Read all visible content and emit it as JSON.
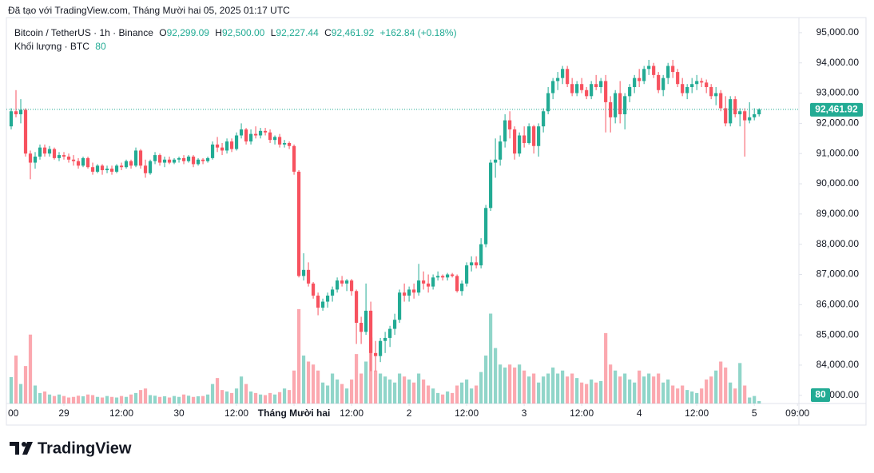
{
  "chart_data": {
    "type": "candlestick",
    "title": "Đã tạo với TradingView.com, Tháng Mười hai 05, 2025 01:17 UTC",
    "legend": {
      "symbol": "Bitcoin / TetherUS · 1h · Binance",
      "open_label": "O",
      "open": "92,299.09",
      "high_label": "H",
      "high": "92,500.00",
      "low_label": "L",
      "low": "92,227.44",
      "close_label": "C",
      "close": "92,461.92",
      "change": "+162.84 (+0.18%)",
      "volume_label": "Khối lượng · BTC"
    },
    "logo": "TradingView",
    "up_color": "#22ab94",
    "down_color": "#f7525f",
    "grid": false,
    "xlim": [
      0,
      165.3
    ],
    "ylim": [
      82730,
      95500
    ],
    "volume_lim": [
      0,
      4000
    ],
    "xticks": [
      {
        "value": 0,
        "label": "00"
      },
      {
        "value": 12,
        "label": "29"
      },
      {
        "value": 24,
        "label": "12:00"
      },
      {
        "value": 36,
        "label": "30"
      },
      {
        "value": 48,
        "label": "12:00"
      },
      {
        "value": 60,
        "label": "Tháng Mười hai"
      },
      {
        "value": 72,
        "label": "12:00"
      },
      {
        "value": 84,
        "label": "2"
      },
      {
        "value": 96,
        "label": "12:00"
      },
      {
        "value": 108,
        "label": "3"
      },
      {
        "value": 120,
        "label": "12:00"
      },
      {
        "value": 132,
        "label": "4"
      },
      {
        "value": 144,
        "label": "12:00"
      },
      {
        "value": 156,
        "label": "5"
      },
      {
        "value": 165,
        "label": "09:00"
      }
    ],
    "yticks": [
      {
        "value": 83000,
        "label": "83,000.00"
      },
      {
        "value": 84000,
        "label": "84,000.00"
      },
      {
        "value": 85000,
        "label": "85,000.00"
      },
      {
        "value": 86000,
        "label": "86,000.00"
      },
      {
        "value": 87000,
        "label": "87,000.00"
      },
      {
        "value": 88000,
        "label": "88,000.00"
      },
      {
        "value": 89000,
        "label": "89,000.00"
      },
      {
        "value": 90000,
        "label": "90,000.00"
      },
      {
        "value": 91000,
        "label": "91,000.00"
      },
      {
        "value": 92000,
        "label": "92,000.00"
      },
      {
        "value": 93000,
        "label": "93,000.00"
      },
      {
        "value": 94000,
        "label": "94,000.00"
      },
      {
        "value": 95000,
        "label": "95,000.00"
      }
    ],
    "x": [
      1,
      2,
      3,
      4,
      5,
      6,
      7,
      8,
      9,
      10,
      11,
      12,
      13,
      14,
      15,
      16,
      17,
      18,
      19,
      20,
      21,
      22,
      23,
      24,
      25,
      26,
      27,
      28,
      29,
      30,
      31,
      32,
      33,
      34,
      35,
      36,
      37,
      38,
      39,
      40,
      41,
      42,
      43,
      44,
      45,
      46,
      47,
      48,
      49,
      50,
      51,
      52,
      53,
      54,
      55,
      56,
      57,
      58,
      59,
      60,
      61,
      62,
      63,
      64,
      65,
      66,
      67,
      68,
      69,
      70,
      71,
      72,
      73,
      74,
      75,
      76,
      77,
      78,
      79,
      80,
      81,
      82,
      83,
      84,
      85,
      86,
      87,
      88,
      89,
      90,
      91,
      92,
      93,
      94,
      95,
      96,
      97,
      98,
      99,
      100,
      101,
      102,
      103,
      104,
      105,
      106,
      107,
      108,
      109,
      110,
      111,
      112,
      113,
      114,
      115,
      116,
      117,
      118,
      119,
      120,
      121,
      122,
      123,
      124,
      125,
      126,
      127,
      128,
      129,
      130,
      131,
      132,
      133,
      134,
      135,
      136,
      137,
      138,
      139,
      140,
      141,
      142,
      143,
      144,
      145,
      146,
      147,
      148,
      149,
      150,
      151,
      152,
      153,
      154,
      155,
      156,
      157
    ],
    "ohlc": [
      [
        91900,
        92500,
        91800,
        92400
      ],
      [
        92400,
        93100,
        92200,
        92300
      ],
      [
        92300,
        92800,
        92000,
        92450
      ],
      [
        92450,
        92500,
        90900,
        91000
      ],
      [
        91000,
        91100,
        90150,
        90700
      ],
      [
        90700,
        91050,
        90500,
        90900
      ],
      [
        90900,
        91300,
        90800,
        91200
      ],
      [
        91200,
        91300,
        90900,
        91000
      ],
      [
        91000,
        91250,
        90900,
        91150
      ],
      [
        91150,
        91200,
        90800,
        90850
      ],
      [
        90850,
        91050,
        90750,
        90950
      ],
      [
        90950,
        91050,
        90800,
        90900
      ],
      [
        90900,
        91000,
        90700,
        90800
      ],
      [
        90800,
        90950,
        90600,
        90750
      ],
      [
        90750,
        90850,
        90500,
        90600
      ],
      [
        90600,
        90900,
        90550,
        90850
      ],
      [
        90850,
        90900,
        90500,
        90550
      ],
      [
        90550,
        90700,
        90300,
        90400
      ],
      [
        90400,
        90650,
        90350,
        90600
      ],
      [
        90600,
        90650,
        90300,
        90450
      ],
      [
        90450,
        90600,
        90350,
        90500
      ],
      [
        90500,
        90600,
        90300,
        90400
      ],
      [
        90400,
        90650,
        90350,
        90600
      ],
      [
        90600,
        90700,
        90450,
        90550
      ],
      [
        90550,
        90800,
        90500,
        90750
      ],
      [
        90750,
        90800,
        90500,
        90600
      ],
      [
        90600,
        91200,
        90550,
        91100
      ],
      [
        91100,
        91150,
        90500,
        90600
      ],
      [
        90600,
        90800,
        90200,
        90350
      ],
      [
        90350,
        90800,
        90300,
        90750
      ],
      [
        90750,
        91050,
        90650,
        90950
      ],
      [
        90950,
        91000,
        90600,
        90700
      ],
      [
        90700,
        90900,
        90550,
        90800
      ],
      [
        90800,
        90900,
        90650,
        90700
      ],
      [
        90700,
        90850,
        90650,
        90800
      ],
      [
        90800,
        90900,
        90700,
        90850
      ],
      [
        90850,
        90950,
        90650,
        90750
      ],
      [
        90750,
        90950,
        90700,
        90900
      ],
      [
        90900,
        90950,
        90550,
        90650
      ],
      [
        90650,
        90850,
        90600,
        90800
      ],
      [
        90800,
        90850,
        90650,
        90750
      ],
      [
        90750,
        90900,
        90700,
        90850
      ],
      [
        90850,
        91400,
        90800,
        91300
      ],
      [
        91300,
        91550,
        91050,
        91200
      ],
      [
        91200,
        91350,
        90950,
        91100
      ],
      [
        91100,
        91500,
        91000,
        91400
      ],
      [
        91400,
        91500,
        91050,
        91150
      ],
      [
        91150,
        91700,
        91100,
        91600
      ],
      [
        91600,
        92000,
        91500,
        91800
      ],
      [
        91800,
        91850,
        91300,
        91400
      ],
      [
        91400,
        91800,
        91300,
        91650
      ],
      [
        91650,
        91900,
        91500,
        91600
      ],
      [
        91600,
        91850,
        91500,
        91750
      ],
      [
        91750,
        91850,
        91600,
        91700
      ],
      [
        91700,
        91800,
        91350,
        91450
      ],
      [
        91450,
        91600,
        91300,
        91550
      ],
      [
        91550,
        91650,
        91200,
        91300
      ],
      [
        91300,
        91450,
        91200,
        91350
      ],
      [
        91350,
        91400,
        91150,
        91250
      ],
      [
        91250,
        91300,
        90300,
        90400
      ],
      [
        90400,
        90450,
        86900,
        86950
      ],
      [
        86950,
        87700,
        86800,
        87150
      ],
      [
        87150,
        87400,
        86600,
        86700
      ],
      [
        86700,
        86750,
        86200,
        86300
      ],
      [
        86300,
        86400,
        85650,
        85900
      ],
      [
        85900,
        86200,
        85800,
        86100
      ],
      [
        86100,
        86400,
        85900,
        86300
      ],
      [
        86300,
        86600,
        86100,
        86500
      ],
      [
        86500,
        86900,
        86400,
        86800
      ],
      [
        86800,
        86950,
        86600,
        86700
      ],
      [
        86700,
        86850,
        86450,
        86800
      ],
      [
        86800,
        86850,
        86300,
        86450
      ],
      [
        86450,
        86500,
        84700,
        85400
      ],
      [
        85400,
        85600,
        84700,
        85100
      ],
      [
        85100,
        86700,
        85000,
        85800
      ],
      [
        85800,
        86100,
        83800,
        84400
      ],
      [
        84400,
        84800,
        83800,
        84300
      ],
      [
        84300,
        84900,
        84100,
        84800
      ],
      [
        84800,
        85100,
        84400,
        84900
      ],
      [
        84900,
        85300,
        84600,
        85200
      ],
      [
        85200,
        85700,
        85000,
        85500
      ],
      [
        85500,
        86500,
        85400,
        86400
      ],
      [
        86400,
        86700,
        86100,
        86300
      ],
      [
        86300,
        86600,
        86100,
        86500
      ],
      [
        86500,
        86700,
        86200,
        86400
      ],
      [
        86400,
        87350,
        86300,
        86800
      ],
      [
        86800,
        87100,
        86500,
        86700
      ],
      [
        86700,
        87000,
        86400,
        86600
      ],
      [
        86600,
        87000,
        86500,
        86900
      ],
      [
        86900,
        87100,
        86800,
        86950
      ],
      [
        86950,
        87000,
        86800,
        86900
      ],
      [
        86900,
        87050,
        86800,
        87000
      ],
      [
        87000,
        87050,
        86900,
        86950
      ],
      [
        86950,
        87000,
        86400,
        86450
      ],
      [
        86450,
        86800,
        86300,
        86700
      ],
      [
        86700,
        87400,
        86600,
        87300
      ],
      [
        87300,
        87600,
        87100,
        87400
      ],
      [
        87400,
        87600,
        87200,
        87300
      ],
      [
        87300,
        88200,
        87200,
        88000
      ],
      [
        88000,
        89300,
        87900,
        89200
      ],
      [
        89200,
        90800,
        89100,
        90700
      ],
      [
        90700,
        91500,
        90200,
        90800
      ],
      [
        90800,
        91600,
        90600,
        91400
      ],
      [
        91400,
        92300,
        91200,
        92100
      ],
      [
        92100,
        92400,
        91500,
        91800
      ],
      [
        91800,
        91900,
        90800,
        91000
      ],
      [
        91000,
        91700,
        90900,
        91600
      ],
      [
        91600,
        91900,
        91200,
        91350
      ],
      [
        91350,
        92000,
        91300,
        91900
      ],
      [
        91900,
        91950,
        91000,
        91250
      ],
      [
        91250,
        92000,
        90900,
        91900
      ],
      [
        91900,
        92500,
        91700,
        92400
      ],
      [
        92400,
        93200,
        92300,
        93000
      ],
      [
        93000,
        93500,
        92800,
        93400
      ],
      [
        93400,
        93700,
        93100,
        93500
      ],
      [
        93500,
        93900,
        93300,
        93800
      ],
      [
        93800,
        93900,
        93200,
        93300
      ],
      [
        93300,
        93500,
        92900,
        93000
      ],
      [
        93000,
        93400,
        92900,
        93300
      ],
      [
        93300,
        93500,
        93000,
        93100
      ],
      [
        93100,
        93200,
        92800,
        92900
      ],
      [
        92900,
        93400,
        92800,
        93300
      ],
      [
        93300,
        93600,
        93100,
        93200
      ],
      [
        93200,
        93500,
        93000,
        93400
      ],
      [
        93400,
        93600,
        91700,
        92700
      ],
      [
        92700,
        92900,
        91700,
        92200
      ],
      [
        92200,
        93100,
        92000,
        93000
      ],
      [
        93000,
        93400,
        92000,
        92300
      ],
      [
        92300,
        93000,
        91800,
        92900
      ],
      [
        92900,
        93300,
        92700,
        93200
      ],
      [
        93200,
        93600,
        93000,
        93500
      ],
      [
        93500,
        93800,
        93200,
        93400
      ],
      [
        93400,
        93900,
        93300,
        93800
      ],
      [
        93800,
        94100,
        93600,
        93900
      ],
      [
        93900,
        94000,
        93500,
        93600
      ],
      [
        93600,
        93700,
        93000,
        93100
      ],
      [
        93100,
        93600,
        92900,
        93500
      ],
      [
        93500,
        94000,
        93300,
        93900
      ],
      [
        93900,
        94100,
        93500,
        93700
      ],
      [
        93700,
        93800,
        93200,
        93300
      ],
      [
        93300,
        93500,
        92900,
        93000
      ],
      [
        93000,
        93300,
        92800,
        93200
      ],
      [
        93200,
        93500,
        93000,
        93300
      ],
      [
        93300,
        93600,
        93100,
        93400
      ],
      [
        93400,
        93500,
        93200,
        93350
      ],
      [
        93350,
        93450,
        93000,
        93200
      ],
      [
        93200,
        93300,
        92800,
        92900
      ],
      [
        92900,
        93200,
        92600,
        93000
      ],
      [
        93000,
        93100,
        92400,
        92500
      ],
      [
        92500,
        92900,
        91900,
        92000
      ],
      [
        92000,
        92900,
        91900,
        92800
      ],
      [
        92800,
        92900,
        92200,
        92300
      ],
      [
        92300,
        92500,
        91900,
        92400
      ],
      [
        92400,
        92500,
        90900,
        92100
      ],
      [
        92100,
        92700,
        92000,
        92200
      ],
      [
        92200,
        92500,
        92100,
        92300
      ],
      [
        92299.09,
        92500,
        92227.44,
        92461.92
      ]
    ],
    "volume": [
      880,
      1600,
      650,
      1250,
      2300,
      600,
      350,
      400,
      300,
      250,
      300,
      250,
      200,
      220,
      260,
      240,
      300,
      280,
      220,
      200,
      250,
      220,
      200,
      250,
      220,
      300,
      350,
      450,
      500,
      280,
      260,
      220,
      240,
      200,
      250,
      220,
      300,
      260,
      220,
      240,
      250,
      300,
      650,
      850,
      450,
      400,
      350,
      500,
      900,
      650,
      400,
      350,
      300,
      280,
      350,
      300,
      380,
      500,
      450,
      1100,
      3150,
      1600,
      1400,
      1300,
      1100,
      700,
      600,
      1000,
      800,
      650,
      500,
      800,
      1650,
      1000,
      1400,
      2200,
      1100,
      1000,
      900,
      800,
      700,
      1000,
      900,
      800,
      700,
      1000,
      800,
      600,
      500,
      350,
      300,
      400,
      350,
      600,
      700,
      800,
      500,
      600,
      1050,
      1600,
      3000,
      1850,
      1300,
      1200,
      1300,
      1200,
      1300,
      1100,
      900,
      1000,
      700,
      900,
      1000,
      1200,
      1000,
      1100,
      900,
      1000,
      850,
      700,
      650,
      800,
      700,
      750,
      2350,
      1300,
      1100,
      900,
      1000,
      800,
      700,
      1100,
      900,
      1000,
      900,
      1000,
      700,
      800,
      600,
      500,
      600,
      450,
      400,
      350,
      500,
      800,
      900,
      1100,
      1400,
      1200,
      700,
      500,
      1350,
      600,
      200,
      250,
      80
    ]
  }
}
